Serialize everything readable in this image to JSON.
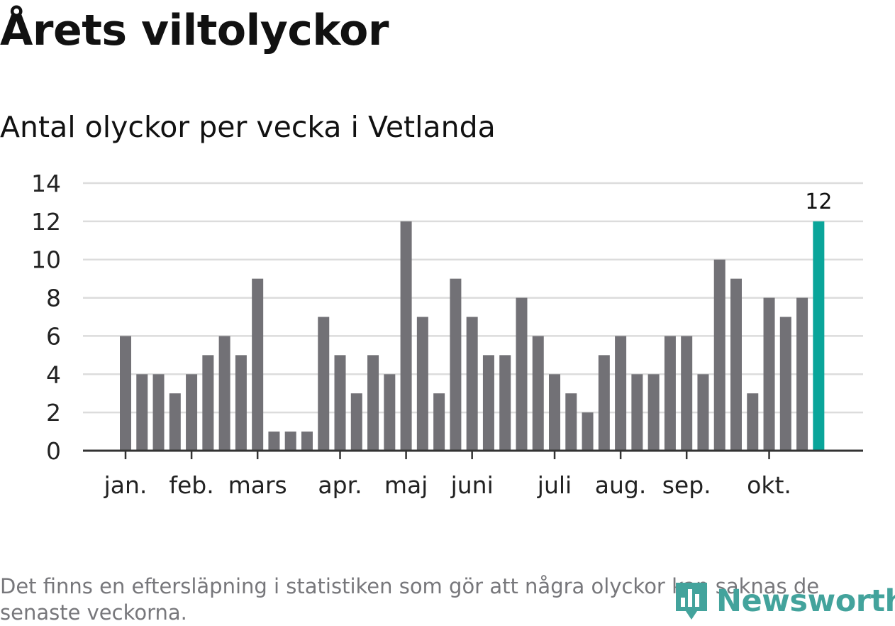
{
  "header": {
    "title": "Årets viltolyckor",
    "subtitle": "Antal olyckor per vecka i Vetlanda"
  },
  "footer": {
    "note": "Det finns en eftersläpning i statistiken som gör att några olyckor kan saknas de senaste veckorna.",
    "brand": "Newsworthy"
  },
  "colors": {
    "bar": "#727176",
    "highlight": "#0aa59a",
    "grid": "#dcdcdc",
    "axis": "#333333",
    "brand": "#43a39c"
  },
  "chart_data": {
    "type": "bar",
    "title": "Antal olyckor per vecka i Vetlanda",
    "xlabel": "",
    "ylabel": "",
    "ylim": [
      0,
      14
    ],
    "yticks": [
      0,
      2,
      4,
      6,
      8,
      10,
      12,
      14
    ],
    "grid": true,
    "values": [
      6,
      4,
      4,
      3,
      4,
      5,
      6,
      5,
      9,
      1,
      1,
      1,
      7,
      5,
      3,
      5,
      4,
      12,
      7,
      3,
      9,
      7,
      5,
      5,
      8,
      6,
      4,
      3,
      2,
      5,
      6,
      4,
      4,
      6,
      6,
      4,
      10,
      9,
      3,
      8,
      7,
      8,
      12
    ],
    "highlight_index": 42,
    "highlight_label": "12",
    "month_labels": [
      {
        "label": "jan.",
        "bar_index": 0
      },
      {
        "label": "feb.",
        "bar_index": 4
      },
      {
        "label": "mars",
        "bar_index": 8
      },
      {
        "label": "apr.",
        "bar_index": 13
      },
      {
        "label": "maj",
        "bar_index": 17
      },
      {
        "label": "juni",
        "bar_index": 21
      },
      {
        "label": "juli",
        "bar_index": 26
      },
      {
        "label": "aug.",
        "bar_index": 30
      },
      {
        "label": "sep.",
        "bar_index": 34
      },
      {
        "label": "okt.",
        "bar_index": 39
      }
    ]
  }
}
